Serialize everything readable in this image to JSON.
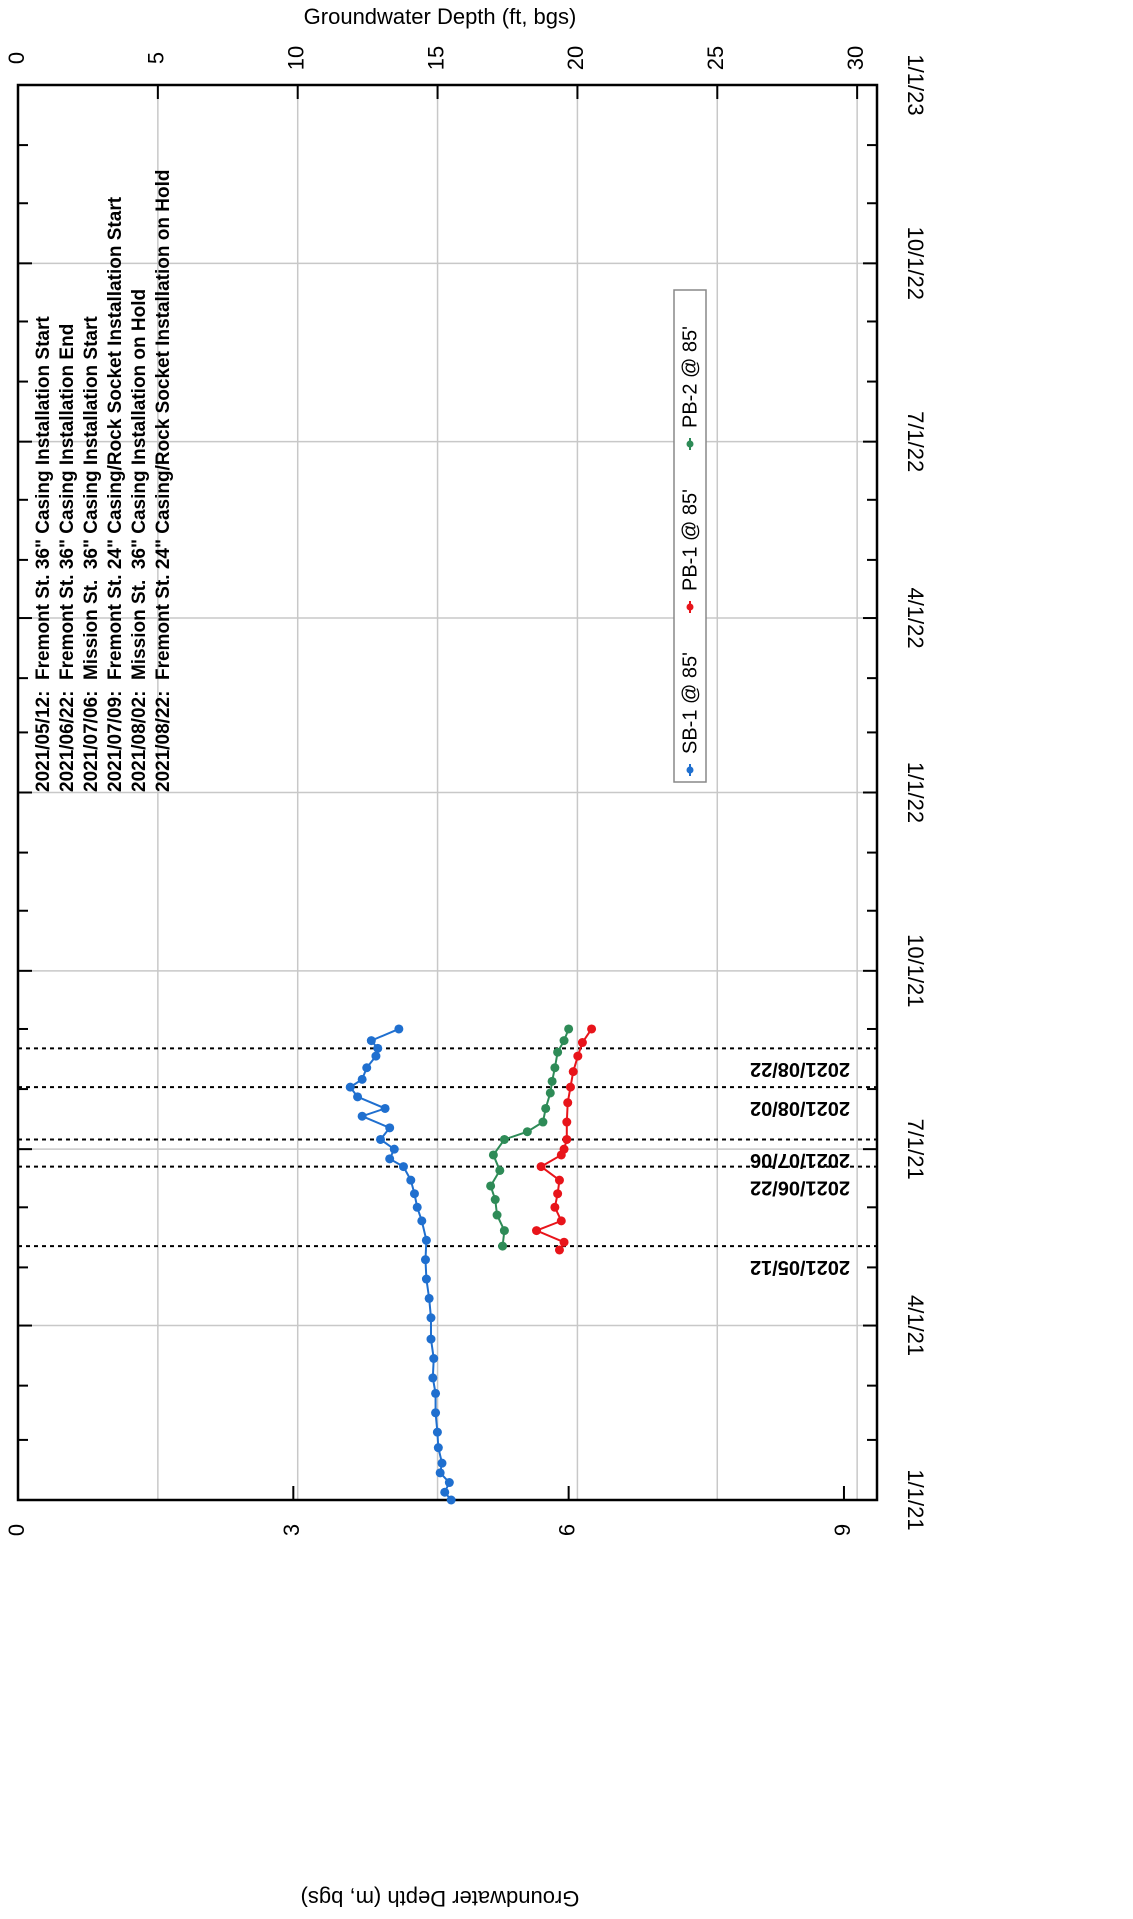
{
  "chart_data": {
    "type": "line",
    "xlabel": "Groundwater Depth (ft, bgs)",
    "ylabel": "Groundwater Depth (m, bgs)",
    "xlim": [
      "2021-01-01",
      "2023-01-01"
    ],
    "xticks": [
      {
        "value": "2021-01-01",
        "label": "1/1/21"
      },
      {
        "value": "2021-04-01",
        "label": "4/1/21"
      },
      {
        "value": "2021-07-01",
        "label": "7/1/21"
      },
      {
        "value": "2021-10-01",
        "label": "10/1/21"
      },
      {
        "value": "2022-01-01",
        "label": "1/1/22"
      },
      {
        "value": "2022-04-01",
        "label": "4/1/22"
      },
      {
        "value": "2022-07-01",
        "label": "7/1/22"
      },
      {
        "value": "2022-10-01",
        "label": "10/1/22"
      },
      {
        "value": "2023-01-01",
        "label": "1/1/23"
      }
    ],
    "xminor_ticks": [
      "2021-02-01",
      "2021-03-01",
      "2021-05-01",
      "2021-06-01",
      "2021-08-01",
      "2021-09-01",
      "2021-11-01",
      "2021-12-01",
      "2022-02-01",
      "2022-03-01",
      "2022-05-01",
      "2022-06-01",
      "2022-08-01",
      "2022-09-01",
      "2022-11-01",
      "2022-12-01"
    ],
    "ylim": [
      0,
      9.36
    ],
    "yticks": [
      0,
      3,
      6,
      9
    ],
    "y2lim": [
      0,
      30.71
    ],
    "y2ticks": [
      0,
      5,
      10,
      15,
      20,
      25,
      30
    ],
    "grid": true,
    "events": [
      "2021/05/12",
      "2021/06/22",
      "2021/07/06",
      "2021/08/02",
      "2021/08/22"
    ],
    "annotations": [
      "2021/05/12:  Fremont St. 36\" Casing Installation Start",
      "2021/06/22:  Fremont St. 36\" Casing Installation End",
      "2021/07/06:  Mission St.  36\" Casing Installation Start",
      "2021/07/09:  Fremont St. 24\" Casing/Rock Socket Installation Start",
      "2021/08/02:  Mission St.  36\" Casing Installation on Hold",
      "2021/08/22:  Fremont St. 24\" Casing/Rock Socket Installation on Hold"
    ],
    "series": [
      {
        "name": "SB-1 @ 85'",
        "color": "#1f6fcf",
        "x": [
          "2021-01-01",
          "2021-01-05",
          "2021-01-10",
          "2021-01-15",
          "2021-01-20",
          "2021-01-28",
          "2021-02-05",
          "2021-02-15",
          "2021-02-25",
          "2021-03-05",
          "2021-03-15",
          "2021-03-25",
          "2021-04-05",
          "2021-04-15",
          "2021-04-25",
          "2021-05-05",
          "2021-05-15",
          "2021-05-25",
          "2021-06-01",
          "2021-06-08",
          "2021-06-15",
          "2021-06-22",
          "2021-06-26",
          "2021-07-01",
          "2021-07-06",
          "2021-07-12",
          "2021-07-18",
          "2021-07-22",
          "2021-07-28",
          "2021-08-02",
          "2021-08-06",
          "2021-08-12",
          "2021-08-18",
          "2021-08-22",
          "2021-08-26",
          "2021-09-01"
        ],
        "values": [
          4.72,
          4.65,
          4.7,
          4.6,
          4.62,
          4.58,
          4.57,
          4.55,
          4.55,
          4.52,
          4.53,
          4.5,
          4.5,
          4.48,
          4.45,
          4.44,
          4.45,
          4.4,
          4.35,
          4.32,
          4.28,
          4.2,
          4.05,
          4.1,
          3.95,
          4.05,
          3.75,
          4.0,
          3.7,
          3.62,
          3.75,
          3.8,
          3.9,
          3.92,
          3.85,
          4.15
        ]
      },
      {
        "name": "PB-1 @ 85'",
        "color": "#e8141a",
        "x": [
          "2021-05-10",
          "2021-05-14",
          "2021-05-20",
          "2021-05-25",
          "2021-06-01",
          "2021-06-08",
          "2021-06-15",
          "2021-06-22",
          "2021-06-28",
          "2021-07-01",
          "2021-07-06",
          "2021-07-15",
          "2021-07-25",
          "2021-08-02",
          "2021-08-10",
          "2021-08-18",
          "2021-08-25",
          "2021-09-01"
        ],
        "values": [
          5.9,
          5.95,
          5.65,
          5.92,
          5.85,
          5.88,
          5.9,
          5.7,
          5.92,
          5.95,
          5.98,
          5.98,
          5.99,
          6.02,
          6.05,
          6.1,
          6.15,
          6.25
        ]
      },
      {
        "name": "PB-2 @ 85'",
        "color": "#2e8b57",
        "x": [
          "2021-05-12",
          "2021-05-20",
          "2021-05-28",
          "2021-06-05",
          "2021-06-12",
          "2021-06-20",
          "2021-06-28",
          "2021-07-06",
          "2021-07-10",
          "2021-07-15",
          "2021-07-22",
          "2021-07-30",
          "2021-08-05",
          "2021-08-12",
          "2021-08-20",
          "2021-08-26",
          "2021-09-01"
        ],
        "values": [
          5.28,
          5.3,
          5.22,
          5.2,
          5.15,
          5.25,
          5.18,
          5.3,
          5.55,
          5.72,
          5.75,
          5.8,
          5.82,
          5.85,
          5.88,
          5.95,
          6.0
        ]
      }
    ]
  }
}
